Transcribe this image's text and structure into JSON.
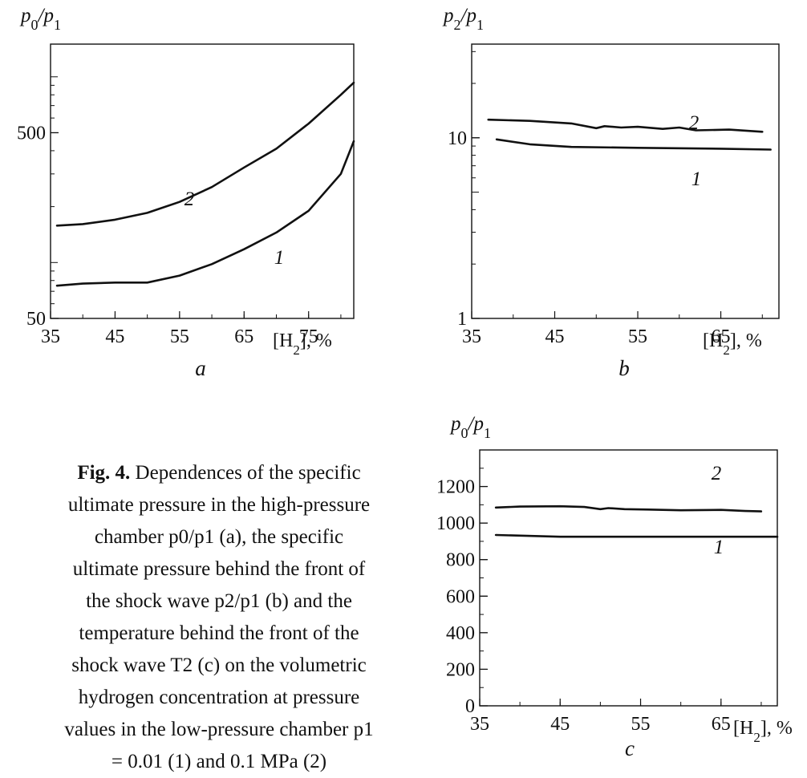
{
  "caption": {
    "label": "Fig. 4.",
    "text": "Dependences of the specific ultimate pressure in the high-pressure chamber p0/p1 (a), the specific ultimate pressure behind the front of the shock wave p2/p1 (b) and the temperature behind the front of the shock wave T2 (c) on the volumetric hydrogen concentration at pressure values in the low-pressure chamber p1 = 0.01 (1) and 0.1 MPa (2)"
  },
  "chart_data": [
    {
      "panel": "a",
      "type": "line",
      "ylabel": "p0/p1",
      "xlabel": "[H2], %",
      "xlim": [
        35,
        82
      ],
      "ylim": [
        50,
        1500
      ],
      "yscale": "log",
      "xticks": [
        "35",
        "45",
        "55",
        "65",
        "75"
      ],
      "yticks": [
        "50",
        "500"
      ],
      "series": [
        {
          "name": "2",
          "x": [
            36,
            40,
            45,
            50,
            55,
            60,
            65,
            70,
            75,
            80,
            82
          ],
          "values": [
            158,
            161,
            170,
            185,
            212,
            255,
            325,
            410,
            560,
            800,
            930
          ]
        },
        {
          "name": "1",
          "x": [
            36,
            40,
            45,
            50,
            55,
            60,
            65,
            70,
            75,
            80,
            82
          ],
          "values": [
            75,
            77,
            78,
            78,
            85,
            98,
            118,
            145,
            190,
            300,
            450
          ]
        }
      ]
    },
    {
      "panel": "b",
      "type": "line",
      "ylabel": "p2/p1",
      "xlabel": "[H2], %",
      "xlim": [
        35,
        72
      ],
      "ylim": [
        1,
        33
      ],
      "yscale": "log",
      "xticks": [
        "35",
        "45",
        "55",
        "65"
      ],
      "yticks": [
        "1",
        "10"
      ],
      "series": [
        {
          "name": "2",
          "x": [
            37,
            42,
            47,
            50,
            51,
            53,
            55,
            58,
            60,
            62,
            66,
            70
          ],
          "values": [
            12.6,
            12.4,
            12.0,
            11.3,
            11.6,
            11.4,
            11.5,
            11.2,
            11.4,
            11.0,
            11.1,
            10.8
          ]
        },
        {
          "name": "1",
          "x": [
            38,
            42,
            47,
            55,
            65,
            71
          ],
          "values": [
            9.8,
            9.2,
            8.9,
            8.8,
            8.7,
            8.6
          ]
        }
      ]
    },
    {
      "panel": "c",
      "type": "line",
      "ylabel": "p0/p1",
      "xlabel": "[H2], %",
      "xlim": [
        35,
        72
      ],
      "ylim": [
        0,
        1400
      ],
      "xticks": [
        "35",
        "45",
        "55",
        "65"
      ],
      "yticks": [
        "0",
        "200",
        "400",
        "600",
        "800",
        "1000",
        "1200"
      ],
      "series": [
        {
          "name": "2",
          "x": [
            37,
            40,
            45,
            48,
            50,
            51,
            53,
            56,
            60,
            65,
            68,
            70
          ],
          "values": [
            1085,
            1090,
            1092,
            1088,
            1076,
            1082,
            1076,
            1074,
            1070,
            1072,
            1066,
            1064
          ]
        },
        {
          "name": "1",
          "x": [
            37,
            45,
            55,
            65,
            72
          ],
          "values": [
            935,
            925,
            925,
            925,
            925
          ]
        }
      ]
    }
  ]
}
